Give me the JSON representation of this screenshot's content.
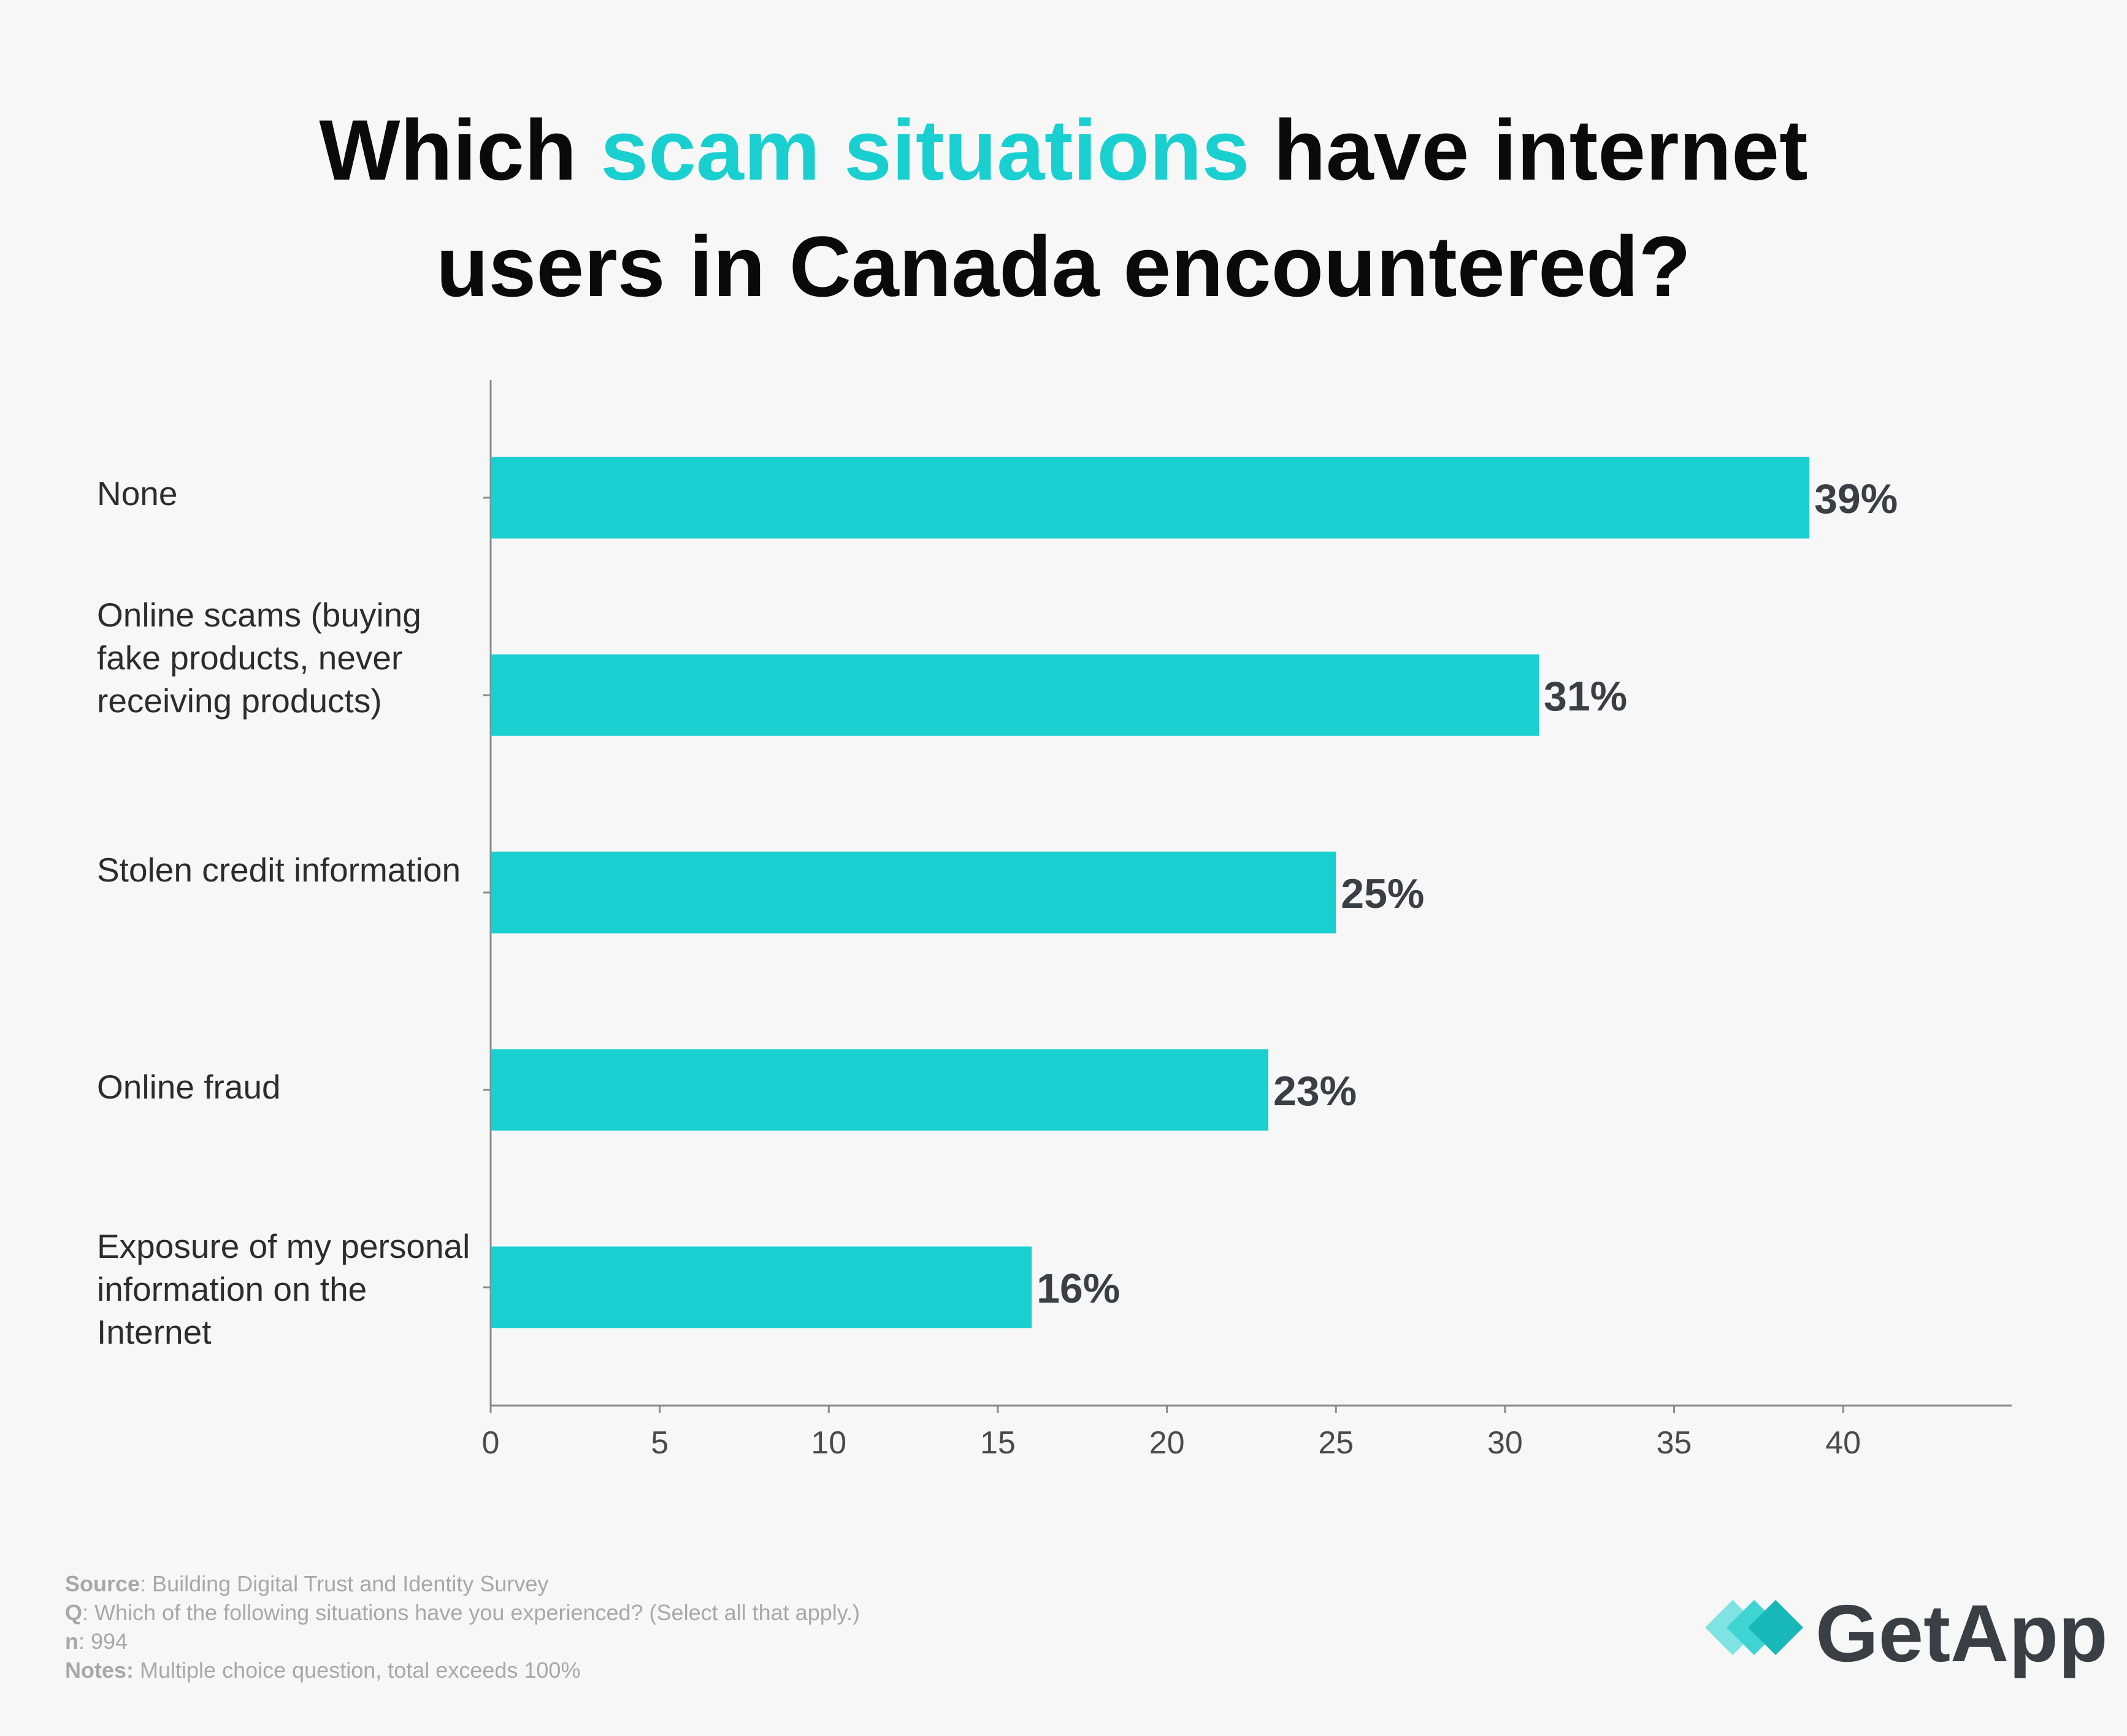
{
  "title": {
    "part1": "Which ",
    "highlight": "scam situations",
    "part2": " have internet",
    "line2": "users in Canada encountered?"
  },
  "chart_data": {
    "type": "bar",
    "orientation": "horizontal",
    "title": "Which scam situations have internet users in Canada encountered?",
    "categories": [
      "None",
      "Online scams (buying fake products, never receiving products)",
      "Stolen credit information",
      "Online fraud",
      "Exposure of my personal information on the Internet"
    ],
    "values": [
      39,
      31,
      25,
      23,
      16
    ],
    "data_labels": [
      "39%",
      "31%",
      "25%",
      "23%",
      "16%"
    ],
    "xlim": [
      0,
      45
    ],
    "xticks": [
      0,
      5,
      10,
      15,
      20,
      25,
      30,
      35,
      40
    ],
    "xlabel": "",
    "ylabel": "",
    "grid": false,
    "legend": "none"
  },
  "labels": {
    "cat0": "None",
    "cat1": "Online scams (buying fake products, never receiving products)",
    "cat2": "Stolen credit information",
    "cat3": "Online fraud",
    "cat4": "Exposure of my personal information on the Internet"
  },
  "footer": {
    "source_key": "Source",
    "source_val": ": Building Digital Trust and Identity Survey",
    "q_key": "Q",
    "q_val": ": Which of the following situations have you experienced? (Select all that apply.)",
    "n_key": "n",
    "n_val": ": 994",
    "notes_key": "Notes:",
    "notes_val": " Multiple choice question, total exceeds 100%"
  },
  "brand": {
    "name": "GetApp"
  },
  "colors": {
    "bar": "#19cfcf",
    "accent": "#19cfcf",
    "axis": "#8a8a8a",
    "data_label": "#3a3f46"
  }
}
